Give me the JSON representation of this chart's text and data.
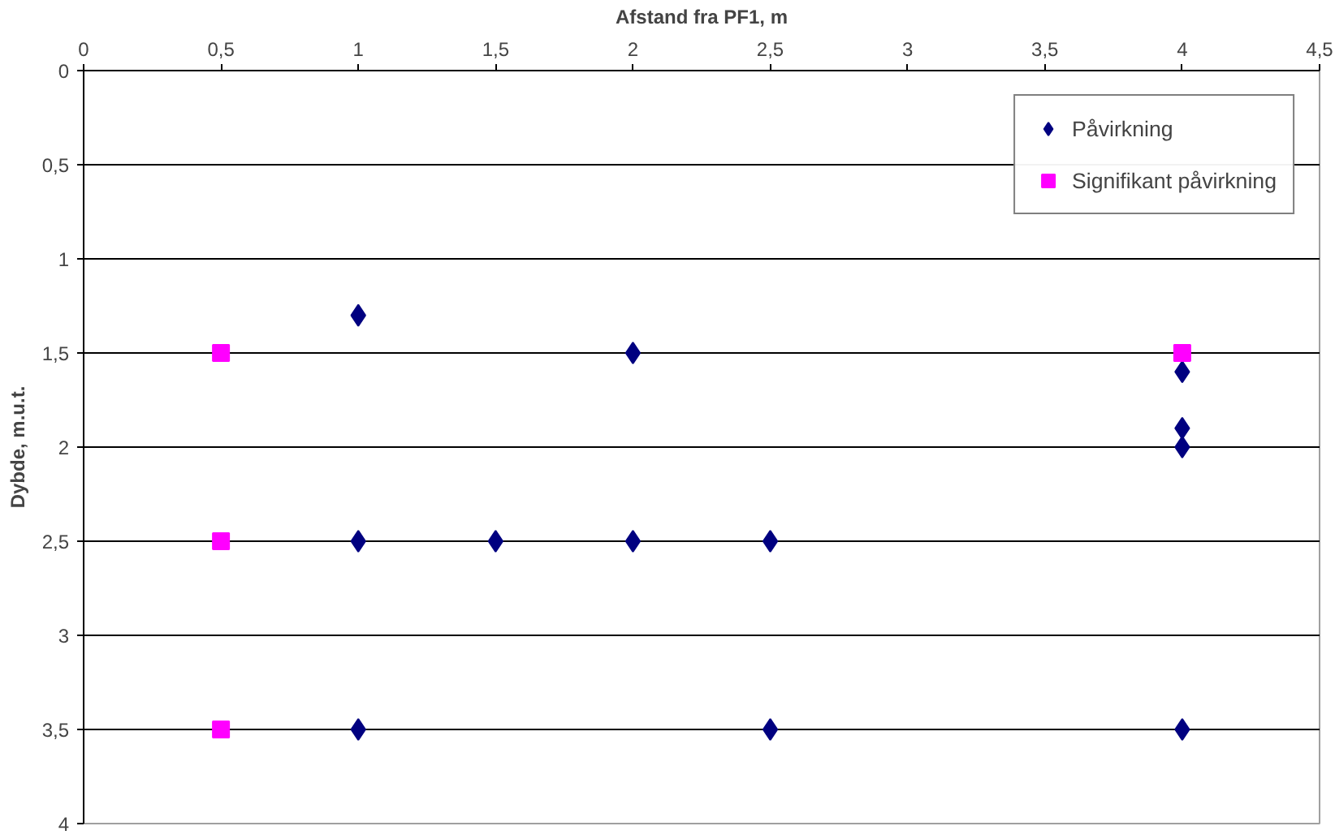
{
  "chart_data": {
    "type": "scatter",
    "xlabel": "Afstand fra PF1, m",
    "ylabel": "Dybde, m.u.t.",
    "xlim": [
      0,
      4.5
    ],
    "ylim": [
      4,
      0
    ],
    "xticks": [
      0,
      {
        "value": 0.5,
        "label": "0,5"
      },
      1,
      {
        "value": 1.5,
        "label": "1,5"
      },
      2,
      {
        "value": 2.5,
        "label": "2,5"
      },
      3,
      {
        "value": 3.5,
        "label": "3,5"
      },
      4,
      {
        "value": 4.5,
        "label": "4,5"
      }
    ],
    "yticks": [
      0,
      {
        "value": 0.5,
        "label": "0,5"
      },
      1,
      {
        "value": 1.5,
        "label": "1,5"
      },
      2,
      {
        "value": 2.5,
        "label": "2,5"
      },
      3,
      {
        "value": 3.5,
        "label": "3,5"
      },
      4
    ],
    "grid": "y",
    "legend": "top right",
    "series": [
      {
        "name": "Påvirkning",
        "color": "#000080",
        "marker": "diamond",
        "x": [
          1,
          2,
          4,
          4,
          4,
          1,
          1.5,
          2,
          2.5,
          1,
          2.5,
          4
        ],
        "values": [
          1.3,
          1.5,
          1.6,
          1.9,
          2.0,
          2.5,
          2.5,
          2.5,
          2.5,
          3.5,
          3.5,
          3.5
        ]
      },
      {
        "name": "Signifikant påvirkning",
        "color": "#ff00ff",
        "marker": "square",
        "x": [
          0.5,
          4,
          0.5,
          0.5
        ],
        "values": [
          1.5,
          1.5,
          2.5,
          3.5
        ]
      }
    ]
  }
}
